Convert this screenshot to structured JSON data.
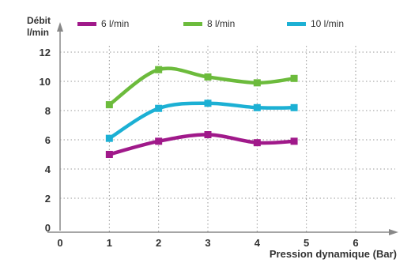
{
  "chart_data": {
    "type": "line",
    "xlabel": "Pression dynamique (Bar)",
    "ylabel_line1": "Débit",
    "ylabel_line2": "l/min",
    "xlim": [
      0,
      7
    ],
    "ylim": [
      0,
      12
    ],
    "x_ticks": [
      "0",
      "1",
      "2",
      "3",
      "4",
      "5",
      "6"
    ],
    "y_ticks": [
      "0",
      "2",
      "4",
      "6",
      "8",
      "10",
      "12"
    ],
    "grid": true,
    "legend_position": "top",
    "series": [
      {
        "name": "6 l/min",
        "color": "#a0198a",
        "x": [
          1,
          2,
          3,
          4,
          4.75
        ],
        "y": [
          5.0,
          5.9,
          6.35,
          5.8,
          5.9
        ]
      },
      {
        "name": "8 l/min",
        "color": "#6cbb3c",
        "x": [
          1,
          2,
          3,
          4,
          4.75
        ],
        "y": [
          8.4,
          10.8,
          10.3,
          9.9,
          10.2
        ]
      },
      {
        "name": "10 l/min",
        "color": "#1cb0d4",
        "x": [
          1,
          2,
          3,
          4,
          4.75
        ],
        "y": [
          6.1,
          8.15,
          8.5,
          8.2,
          8.2
        ]
      }
    ]
  }
}
